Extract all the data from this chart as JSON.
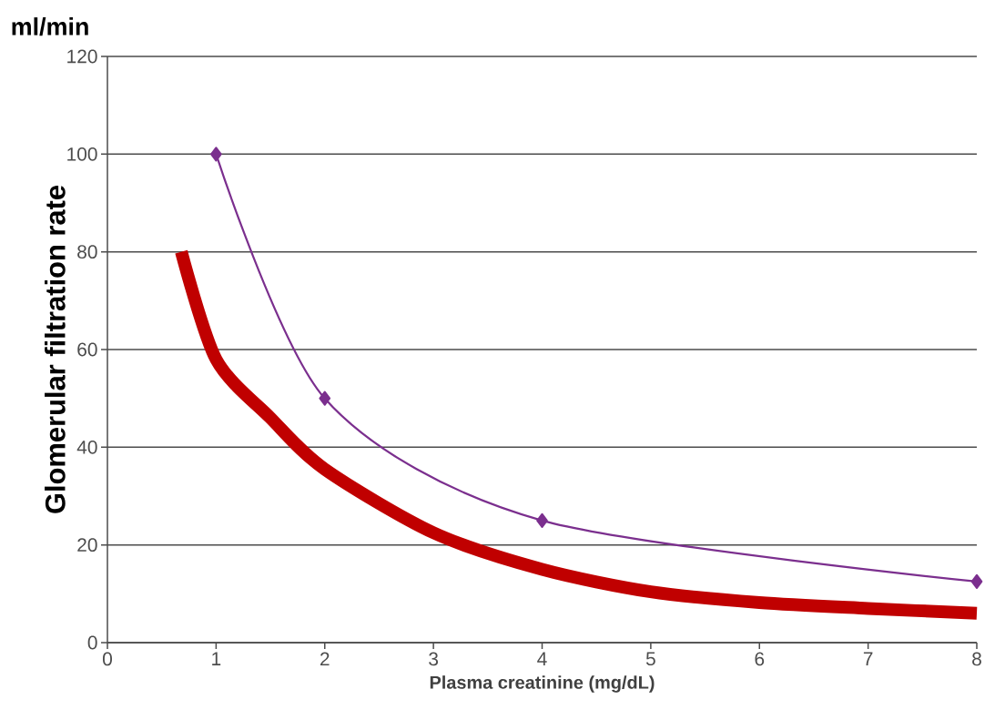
{
  "chart_data": {
    "type": "line",
    "xlabel": "Plasma creatinine (mg/dL)",
    "ylabel": "Glomerular filtration rate",
    "annotations": [
      "ml/min"
    ],
    "xlim": [
      0,
      8
    ],
    "xticks": [
      0,
      1,
      2,
      3,
      4,
      5,
      6,
      7,
      8
    ],
    "ylim": [
      0,
      120
    ],
    "yticks": [
      0,
      20,
      40,
      60,
      80,
      100,
      120
    ],
    "grid": "y",
    "series": [
      {
        "color": "#7b2f8e",
        "marker": "diamond",
        "x": [
          1,
          2,
          4,
          8
        ],
        "values": [
          100,
          50,
          25,
          12.5
        ]
      },
      {
        "color": "#c00000",
        "marker": "none",
        "x": [
          0.68,
          1,
          1.5,
          2,
          3,
          4,
          5,
          6,
          7,
          8
        ],
        "values": [
          80,
          58,
          46,
          35.5,
          22.5,
          15,
          10.4,
          8.2,
          7,
          6
        ]
      }
    ]
  }
}
